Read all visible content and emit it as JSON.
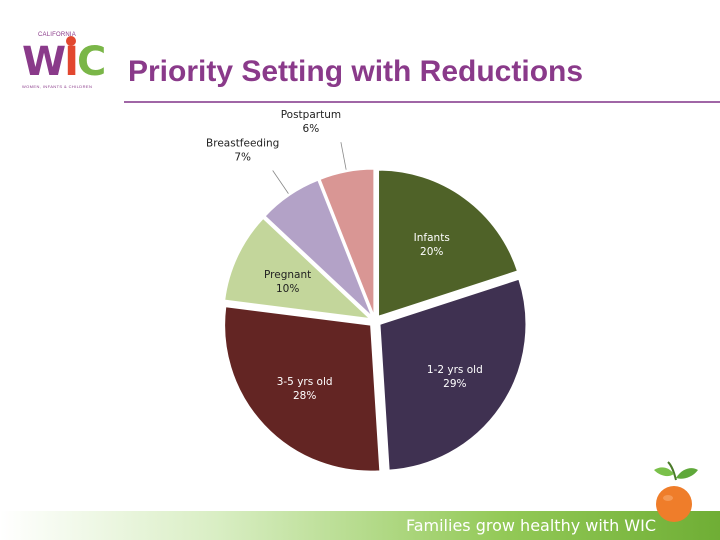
{
  "logo": {
    "state": "CALIFORNIA",
    "word": {
      "w": "W",
      "i": "I",
      "c": "C"
    },
    "tagline": "WOMEN, INFANTS & CHILDREN"
  },
  "title": "Priority Setting with Reductions",
  "footer": {
    "tagline": "Families grow healthy with WIC"
  },
  "colors": {
    "title": "#8a3a8a",
    "rule": "#a066a6",
    "footer_green": "#6fae35"
  },
  "chart_data": {
    "type": "pie",
    "title": "",
    "start_angle_deg": 0,
    "direction": "clockwise",
    "exploded": true,
    "slices": [
      {
        "label": "Infants",
        "value": 20,
        "value_label": "20%",
        "color": "#4f6228",
        "label_color": "#ffffff",
        "label_inside": true
      },
      {
        "label": "1-2 yrs old",
        "value": 29,
        "value_label": "29%",
        "color": "#3f3151",
        "label_color": "#ffffff",
        "label_inside": true
      },
      {
        "label": "3-5 yrs old",
        "value": 28,
        "value_label": "28%",
        "color": "#632523",
        "label_color": "#ffffff",
        "label_inside": true
      },
      {
        "label": "Pregnant",
        "value": 10,
        "value_label": "10%",
        "color": "#c3d69b",
        "label_color": "#222222",
        "label_inside": true
      },
      {
        "label": "Breastfeeding",
        "value": 7,
        "value_label": "7%",
        "color": "#b3a2c7",
        "label_color": "#222222",
        "label_inside": false
      },
      {
        "label": "Postpartum",
        "value": 6,
        "value_label": "6%",
        "color": "#d99694",
        "label_color": "#222222",
        "label_inside": false
      }
    ]
  }
}
